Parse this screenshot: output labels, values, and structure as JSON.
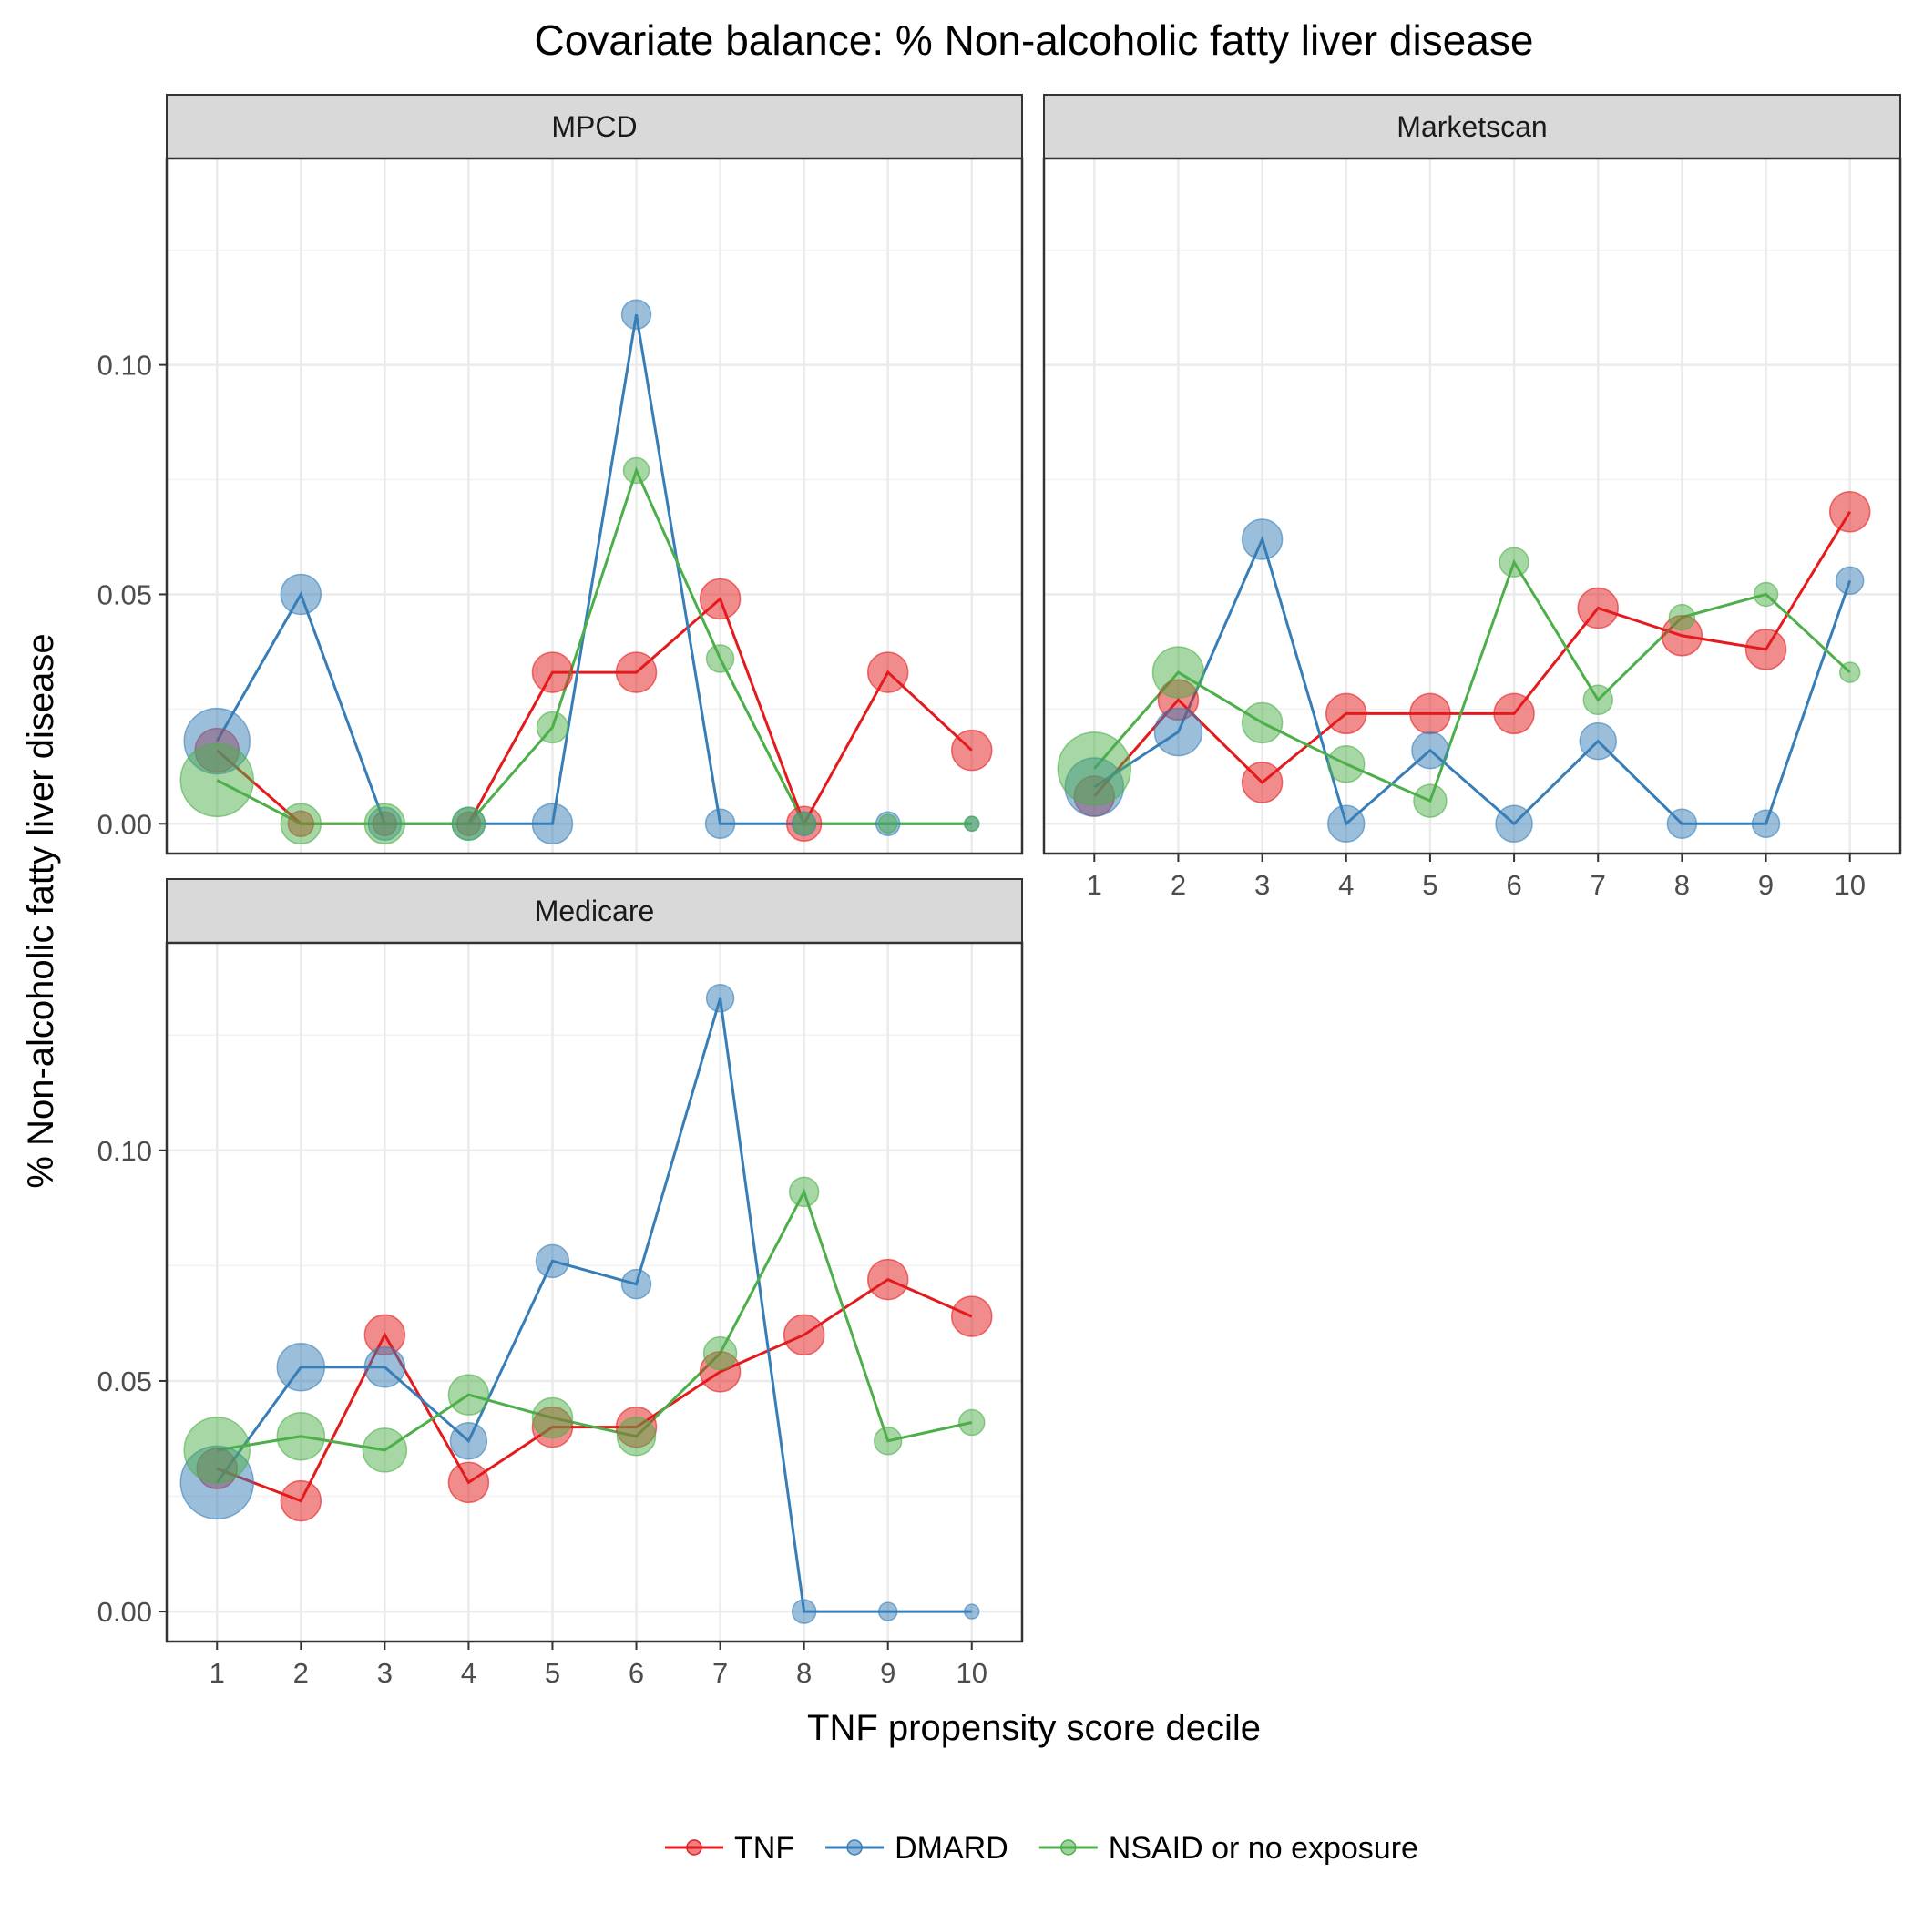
{
  "chart_data": {
    "type": "line",
    "title": "Covariate balance: % Non-alcoholic fatty liver disease",
    "xlabel": "TNF propensity score decile",
    "ylabel": "% Non-alcoholic fatty liver disease",
    "x": [
      1,
      2,
      3,
      4,
      5,
      6,
      7,
      8,
      9,
      10
    ],
    "x_tick_labels": [
      "1",
      "2",
      "3",
      "4",
      "5",
      "6",
      "7",
      "8",
      "9",
      "10"
    ],
    "y_tick_labels": [
      "0.00",
      "0.05",
      "0.10"
    ],
    "y_ticks": [
      0,
      0.05,
      0.1
    ],
    "ylim": [
      -0.0065,
      0.145
    ],
    "grid": true,
    "legend_position": "bottom",
    "legend": [
      {
        "name": "TNF",
        "color": "#e41a1c"
      },
      {
        "name": "DMARD",
        "color": "#377eb8"
      },
      {
        "name": "NSAID or no exposure",
        "color": "#4daf4a"
      }
    ],
    "panels": [
      {
        "name": "MPCD",
        "series": [
          {
            "name": "TNF",
            "values": [
              0.016,
              0.0,
              0.0,
              0.0,
              0.033,
              0.033,
              0.049,
              0.0,
              0.033,
              0.016
            ],
            "sizes": [
              24,
              14,
              13,
              13,
              22,
              22,
              22,
              19,
              22,
              22
            ]
          },
          {
            "name": "DMARD",
            "values": [
              0.018,
              0.05,
              0.0,
              0.0,
              0.0,
              0.111,
              0.0,
              0.0,
              0.0,
              0.0
            ],
            "sizes": [
              36,
              22,
              18,
              18,
              22,
              16,
              16,
              13,
              13,
              8
            ]
          },
          {
            "name": "NSAID or no exposure",
            "values": [
              0.0095,
              0.0,
              0.0,
              0.0,
              0.021,
              0.077,
              0.036,
              0.0,
              0.0,
              0.0
            ],
            "sizes": [
              40,
              22,
              22,
              18,
              17,
              14,
              15,
              12,
              10,
              8
            ]
          }
        ]
      },
      {
        "name": "Marketscan",
        "series": [
          {
            "name": "TNF",
            "values": [
              0.006,
              0.027,
              0.009,
              0.024,
              0.024,
              0.024,
              0.047,
              0.041,
              0.038,
              0.068
            ],
            "sizes": [
              22,
              22,
              22,
              22,
              22,
              22,
              22,
              22,
              22,
              22
            ]
          },
          {
            "name": "DMARD",
            "values": [
              0.008,
              0.02,
              0.062,
              0.0,
              0.016,
              0.0,
              0.018,
              0.0,
              0.0,
              0.053
            ],
            "sizes": [
              32,
              26,
              22,
              20,
              20,
              20,
              20,
              16,
              15,
              15
            ]
          },
          {
            "name": "NSAID or no exposure",
            "values": [
              0.012,
              0.033,
              0.022,
              0.013,
              0.005,
              0.057,
              0.027,
              0.045,
              0.05,
              0.033
            ],
            "sizes": [
              40,
              28,
              22,
              20,
              18,
              16,
              16,
              14,
              13,
              11
            ]
          }
        ]
      },
      {
        "name": "Medicare",
        "series": [
          {
            "name": "TNF",
            "values": [
              0.031,
              0.024,
              0.06,
              0.028,
              0.04,
              0.04,
              0.052,
              0.06,
              0.072,
              0.064
            ],
            "sizes": [
              22,
              22,
              22,
              22,
              22,
              22,
              22,
              22,
              22,
              22
            ]
          },
          {
            "name": "DMARD",
            "values": [
              0.028,
              0.053,
              0.053,
              0.037,
              0.076,
              0.071,
              0.133,
              0.0,
              0.0,
              0.0
            ],
            "sizes": [
              40,
              26,
              22,
              20,
              18,
              16,
              15,
              13,
              10,
              8
            ]
          },
          {
            "name": "NSAID or no exposure",
            "values": [
              0.035,
              0.038,
              0.035,
              0.047,
              0.042,
              0.038,
              0.056,
              0.091,
              0.037,
              0.041
            ],
            "sizes": [
              36,
              26,
              24,
              22,
              22,
              21,
              18,
              16,
              15,
              14
            ]
          }
        ]
      }
    ]
  }
}
